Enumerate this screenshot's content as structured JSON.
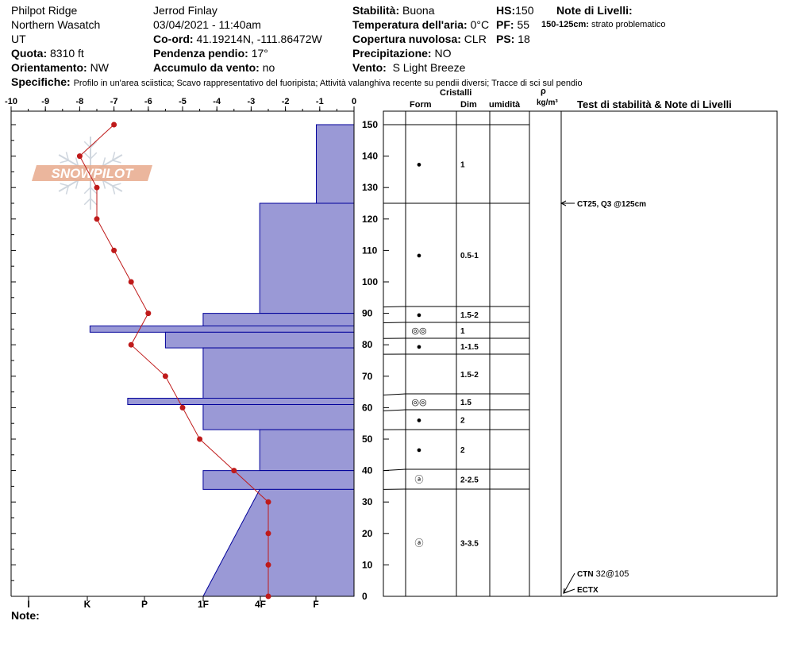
{
  "header": {
    "location": "Philpot Ridge",
    "range": "Northern Wasatch",
    "state": "UT",
    "elevation_label": "Quota:",
    "elevation": "8310 ft",
    "aspect_label": "Orientamento:",
    "aspect": "NW",
    "observer": "Jerrod Finlay",
    "datetime": "03/04/2021 - 11:40am",
    "coord_label": "Co-ord:",
    "coord": "41.19214N, -111.86472W",
    "slope_label": "Pendenza pendio:",
    "slope": "17°",
    "wind_load_label": "Accumulo da vento:",
    "wind_load": "no",
    "stability_label": "Stabilità:",
    "stability": "Buona",
    "air_temp_label": "Temperatura dell'aria:",
    "air_temp": "0°C",
    "sky_label": "Copertura nuvolosa:",
    "sky": "CLR",
    "precip_label": "Precipitazione:",
    "precip": "NO",
    "wind_label": "Vento:",
    "wind": "S Light Breeze",
    "hs_label": "HS:",
    "hs": "150",
    "pf_label": "PF:",
    "pf": "55",
    "ps_label": "PS:",
    "ps": "18",
    "layer_notes_title": "Note di Livelli:",
    "layer_note_depth": "150-125cm:",
    "layer_note_text": "strato problematico",
    "specifics_label": "Specifiche:",
    "specifics": "Profilo in un'area sciistica; Scavo rappresentativo del fuoripista; Attività valanghiva recente su pendii diversi; Tracce di sci sul pendio",
    "notes_label": "Note:"
  },
  "logo_text": "SNOWPILOT",
  "columns": {
    "crystals": "Cristalli",
    "form": "Form",
    "size": "Dim",
    "moisture": "umidità",
    "density_symbol": "ρ",
    "density_unit": "kg/m³",
    "tests": "Test di stabilità & Note di Livelli"
  },
  "layers": [
    {
      "top": 150,
      "bottom": 125,
      "form": "●",
      "size": "1"
    },
    {
      "top": 125,
      "bottom": 92,
      "form": "●",
      "size": "0.5-1"
    },
    {
      "top": 92,
      "bottom": 87,
      "form": "●",
      "size": "1.5-2"
    },
    {
      "top": 87,
      "bottom": 82,
      "form": "◎◎",
      "size": "1"
    },
    {
      "top": 82,
      "bottom": 77,
      "form": "●",
      "size": "1-1.5"
    },
    {
      "top": 77,
      "bottom": 64,
      "form": "",
      "size": "1.5-2"
    },
    {
      "top": 64,
      "bottom": 59,
      "form": "◎◎",
      "size": "1.5"
    },
    {
      "top": 59,
      "bottom": 53,
      "form": "●",
      "size": "2"
    },
    {
      "top": 53,
      "bottom": 40,
      "form": "●",
      "size": "2"
    },
    {
      "top": 40,
      "bottom": 34,
      "form": "ⓐ",
      "size": "2-2.5"
    },
    {
      "top": 34,
      "bottom": 0,
      "form": "ⓐ",
      "size": "3-3.5"
    }
  ],
  "tests": [
    {
      "depth": 125,
      "label": "CT25, Q3 @125cm",
      "bold": true
    },
    {
      "depth": 7,
      "label_bold": "CTN",
      "label": "32@105"
    },
    {
      "depth": 2,
      "label_bold": "ECTX",
      "label": ""
    }
  ],
  "colors": {
    "hardness_fill": "#9a99d6",
    "hardness_stroke": "#00009a",
    "temp": "#bf1a1a",
    "logo": "#e8a98c"
  },
  "chart_data": {
    "type": "line",
    "y_axis": {
      "range": [
        0,
        150
      ],
      "ticks": [
        0,
        10,
        20,
        30,
        40,
        50,
        60,
        70,
        80,
        90,
        100,
        110,
        120,
        130,
        140,
        150
      ]
    },
    "temp_axis": {
      "range": [
        -10,
        0
      ],
      "ticks": [
        -10,
        -9,
        -8,
        -7,
        -6,
        -5,
        -4,
        -3,
        -2,
        -1,
        0
      ]
    },
    "hardness_axis": {
      "ticks": [
        "I",
        "K",
        "P",
        "1F",
        "4F",
        "F"
      ]
    },
    "temperature_profile": {
      "height": [
        150,
        140,
        130,
        120,
        110,
        100,
        90,
        80,
        70,
        60,
        50,
        40,
        30,
        20,
        10,
        0
      ],
      "temp": [
        -7.0,
        -8.0,
        -7.5,
        -7.5,
        -7.0,
        -6.5,
        -6.0,
        -6.5,
        -5.5,
        -5.0,
        -4.5,
        -3.5,
        -2.5,
        -2.5,
        -2.5,
        -2.5
      ]
    },
    "hardness_profile": [
      {
        "top": 150,
        "bottom": 125,
        "hardness": "1F",
        "hardness_value": 1.1
      },
      {
        "top": 125,
        "bottom": 90,
        "hardness": "P",
        "hardness_value": 2.75
      },
      {
        "top": 90,
        "bottom": 86,
        "hardness": "P-",
        "hardness_value": 4.4
      },
      {
        "top": 86,
        "bottom": 84,
        "hardness": "K+",
        "hardness_value": 7.7
      },
      {
        "top": 84,
        "bottom": 79,
        "hardness": "P+",
        "hardness_value": 5.5
      },
      {
        "top": 79,
        "bottom": 63,
        "hardness": "P-",
        "hardness_value": 4.4
      },
      {
        "top": 63,
        "bottom": 61,
        "hardness": "K-",
        "hardness_value": 6.6
      },
      {
        "top": 61,
        "bottom": 53,
        "hardness": "P-",
        "hardness_value": 4.4
      },
      {
        "top": 53,
        "bottom": 40,
        "hardness": "P",
        "hardness_value": 2.75
      },
      {
        "top": 40,
        "bottom": 34,
        "hardness": "P-",
        "hardness_value": 4.4
      },
      {
        "top": 34,
        "bottom": 0,
        "hardness": "4F-1F",
        "hardness_value_top": 2.75,
        "hardness_value_bottom": 4.4
      }
    ]
  }
}
